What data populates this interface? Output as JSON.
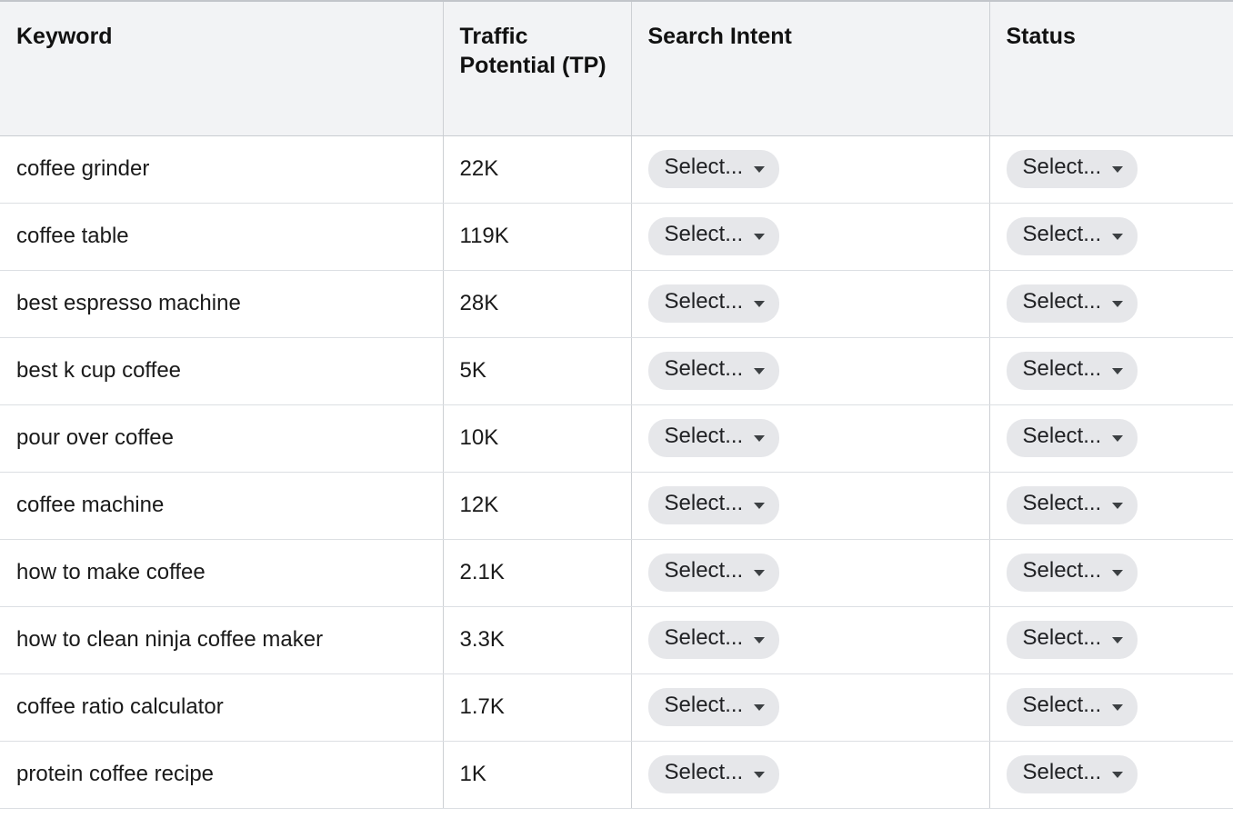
{
  "table": {
    "headers": [
      "Keyword",
      "Traffic Potential (TP)",
      "Search Intent",
      "Status"
    ],
    "select_placeholder": "Select...",
    "rows": [
      {
        "keyword": "coffee grinder",
        "traffic_potential": "22K"
      },
      {
        "keyword": "coffee table",
        "traffic_potential": "119K"
      },
      {
        "keyword": "best espresso machine",
        "traffic_potential": "28K"
      },
      {
        "keyword": "best k cup coffee",
        "traffic_potential": "5K"
      },
      {
        "keyword": "pour over coffee",
        "traffic_potential": "10K"
      },
      {
        "keyword": "coffee machine",
        "traffic_potential": "12K"
      },
      {
        "keyword": "how to make coffee",
        "traffic_potential": "2.1K"
      },
      {
        "keyword": "how to clean ninja coffee maker",
        "traffic_potential": "3.3K"
      },
      {
        "keyword": "coffee ratio calculator",
        "traffic_potential": "1.7K"
      },
      {
        "keyword": "protein coffee recipe",
        "traffic_potential": "1K"
      }
    ],
    "colors": {
      "header_bg": "#f2f3f5",
      "pill_bg": "#e6e7ea",
      "row_border": "#dcdfe3",
      "column_border": "#cdd0d4",
      "text": "#1a1a1a"
    }
  }
}
